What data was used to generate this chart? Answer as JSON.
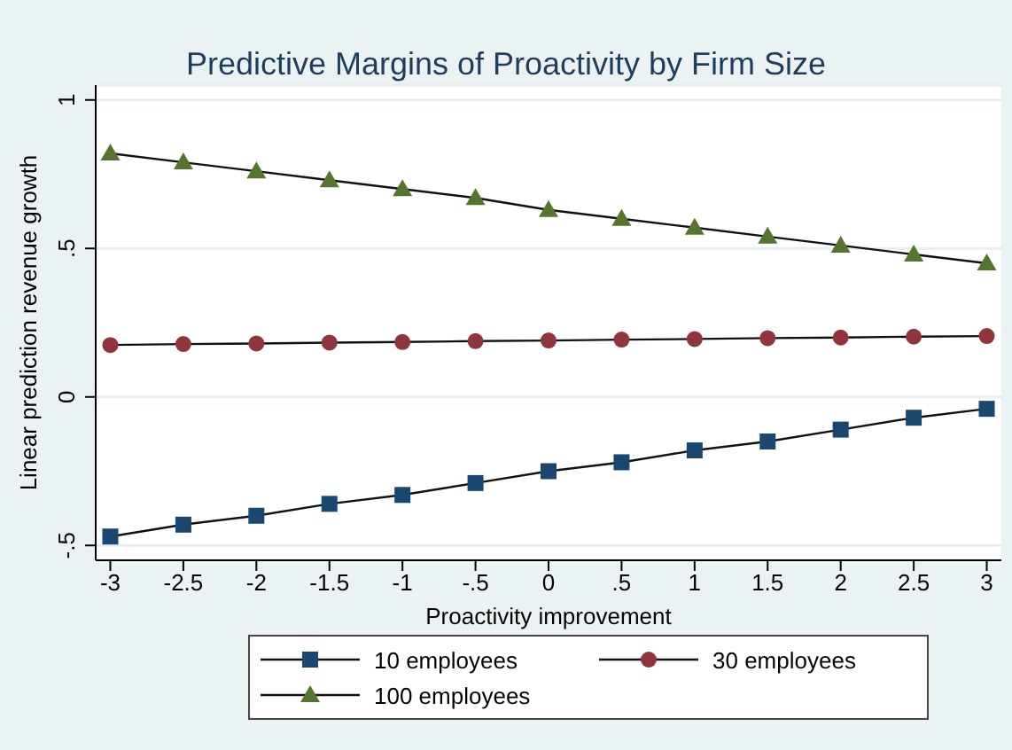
{
  "chart_data": {
    "type": "line",
    "title": "Predictive Margins of Proactivity by Firm Size",
    "xlabel": "Proactivity improvement",
    "ylabel": "Linear prediction revenue growth",
    "x": [
      -3,
      -2.5,
      -2,
      -1.5,
      -1,
      -0.5,
      0,
      0.5,
      1,
      1.5,
      2,
      2.5,
      3
    ],
    "series": [
      {
        "name": "10 employees",
        "color": "#1a476f",
        "marker": "square",
        "values": [
          -0.47,
          -0.43,
          -0.4,
          -0.36,
          -0.33,
          -0.29,
          -0.25,
          -0.22,
          -0.18,
          -0.15,
          -0.11,
          -0.07,
          -0.04
        ]
      },
      {
        "name": "30 employees",
        "color": "#90353b",
        "marker": "circle",
        "values": [
          0.175,
          0.178,
          0.18,
          0.183,
          0.185,
          0.188,
          0.19,
          0.193,
          0.195,
          0.198,
          0.2,
          0.203,
          0.205
        ]
      },
      {
        "name": "100 employees",
        "color": "#55752f",
        "marker": "triangle",
        "values": [
          0.82,
          0.79,
          0.76,
          0.73,
          0.7,
          0.67,
          0.63,
          0.6,
          0.57,
          0.54,
          0.51,
          0.48,
          0.45
        ]
      }
    ],
    "xlim": [
      -3.1,
      3.1
    ],
    "ylim": [
      -0.55,
      1.05
    ],
    "xticks": [
      -3,
      {
        "value": -2.5,
        "label": "-2.5"
      },
      -2,
      {
        "value": -1.5,
        "label": "-1.5"
      },
      -1,
      {
        "value": -0.5,
        "label": "-.5"
      },
      0,
      {
        "value": 0.5,
        "label": ".5"
      },
      1,
      {
        "value": 1.5,
        "label": "1.5"
      },
      2,
      {
        "value": 2.5,
        "label": "2.5"
      },
      3
    ],
    "yticks": [
      {
        "value": -0.5,
        "label": "-.5"
      },
      0,
      {
        "value": 0.5,
        "label": ".5"
      },
      1
    ],
    "grid": "y",
    "legend": "bottom",
    "line_style": "solid"
  }
}
